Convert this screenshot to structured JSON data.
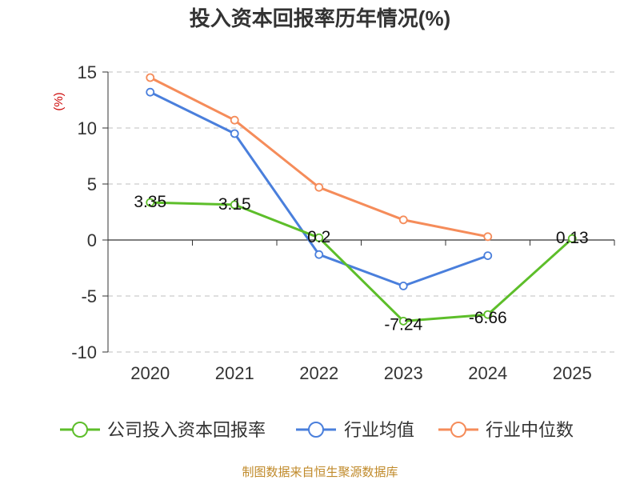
{
  "chart_data": {
    "type": "line",
    "title": "投入资本回报率历年情况(%)",
    "ylabel": "(%)",
    "categories": [
      "2020",
      "2021",
      "2022",
      "2023",
      "2024",
      "2025"
    ],
    "ylim": [
      -10,
      15
    ],
    "yticks": [
      15,
      10,
      5,
      0,
      -5,
      -10
    ],
    "grid": true,
    "legend_position": "bottom",
    "series": [
      {
        "name": "公司投入资本回报率",
        "color": "#5dbe2a",
        "values": [
          3.35,
          3.15,
          0.2,
          -7.24,
          -6.66,
          0.13
        ],
        "labels": [
          "3.35",
          "3.15",
          "0.2",
          "-7.24",
          "-6.66",
          "0.13"
        ]
      },
      {
        "name": "行业均值",
        "color": "#4a7fdc",
        "values": [
          13.2,
          9.5,
          -1.3,
          -4.1,
          -1.4,
          null
        ]
      },
      {
        "name": "行业中位数",
        "color": "#f58c5a",
        "values": [
          14.5,
          10.7,
          4.7,
          1.8,
          0.3,
          null
        ]
      }
    ]
  },
  "footer": {
    "source": "制图数据来自恒生聚源数据库"
  }
}
